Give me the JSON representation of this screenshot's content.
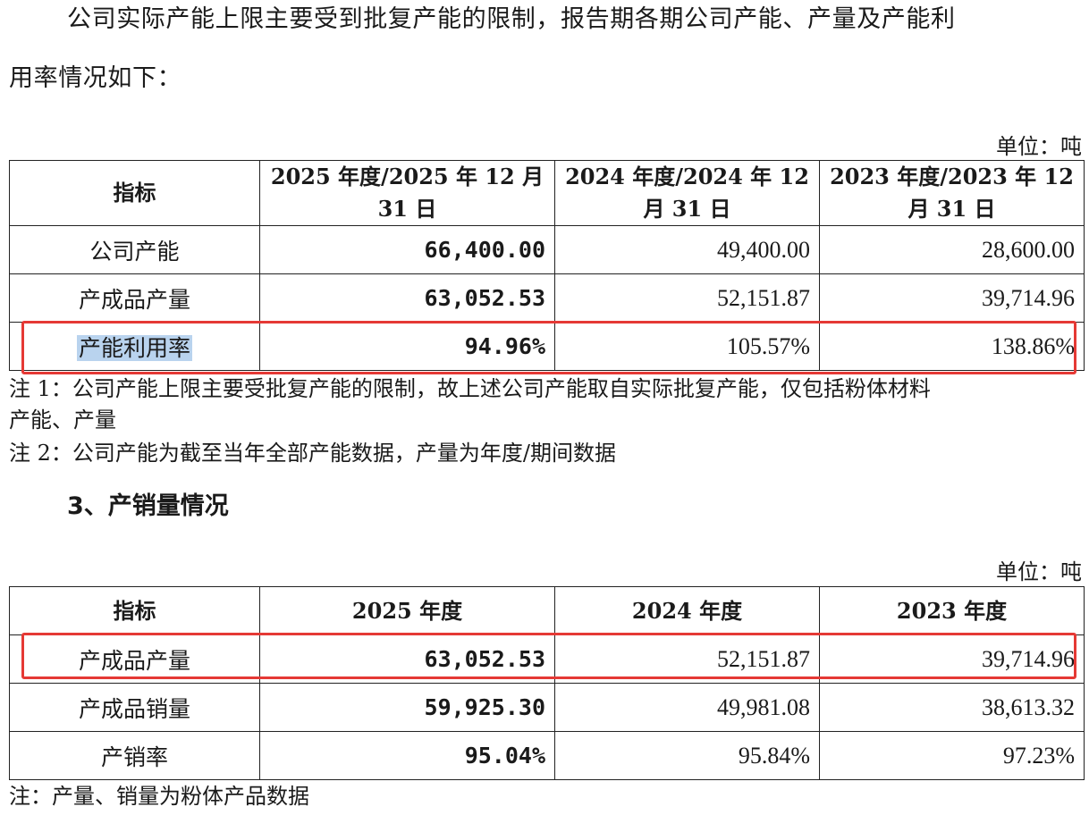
{
  "intro": {
    "line1": "公司实际产能上限主要受到批复产能的限制，报告期各期公司产能、产量及产能利",
    "line2": "用率情况如下："
  },
  "table1": {
    "unit": "单位：吨",
    "headers": [
      "指标",
      "2025 年度/2025 年 12 月 31 日",
      "2024 年度/2024 年 12 月 31 日",
      "2023 年度/2023 年 12 月 31 日"
    ],
    "rows": [
      {
        "label": "公司产能",
        "v2025": "66,400.00",
        "v2024": "49,400.00",
        "v2023": "28,600.00"
      },
      {
        "label": "产成品产量",
        "v2025": "63,052.53",
        "v2024": "52,151.87",
        "v2023": "39,714.96"
      },
      {
        "label": "产能利用率",
        "v2025": "94.96%",
        "v2024": "105.57%",
        "v2023": "138.86%"
      }
    ]
  },
  "notes1": {
    "note1_line1": "注 1：公司产能上限主要受批复产能的限制，故上述公司产能取自实际批复产能，仅包括粉体材料",
    "note1_line2": "产能、产量",
    "note2": "注 2：公司产能为截至当年全部产能数据，产量为年度/期间数据"
  },
  "section3": {
    "heading": "3、产销量情况"
  },
  "table2": {
    "unit": "单位：吨",
    "headers": [
      "指标",
      "2025 年度",
      "2024 年度",
      "2023 年度"
    ],
    "rows": [
      {
        "label": "产成品产量",
        "v2025": "63,052.53",
        "v2024": "52,151.87",
        "v2023": "39,714.96"
      },
      {
        "label": "产成品销量",
        "v2025": "59,925.30",
        "v2024": "49,981.08",
        "v2023": "38,613.32"
      },
      {
        "label": "产销率",
        "v2025": "95.04%",
        "v2024": "95.84%",
        "v2023": "97.23%"
      }
    ]
  },
  "notes2": {
    "note": "注：产量、销量为粉体产品数据"
  },
  "colors": {
    "highlight_box": "#e53935",
    "text_highlight": "#b9d3ee"
  }
}
